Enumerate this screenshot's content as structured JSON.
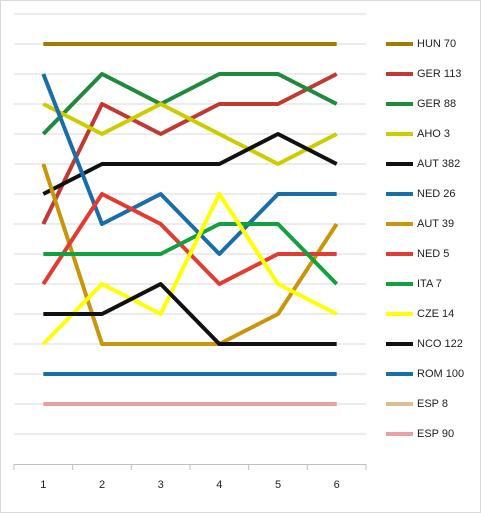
{
  "chart_data": {
    "type": "line",
    "categories": [
      "1",
      "2",
      "3",
      "4",
      "5",
      "6"
    ],
    "ylim": [
      0,
      15
    ],
    "yticks": [
      0,
      1,
      2,
      3,
      4,
      5,
      6,
      7,
      8,
      9,
      10,
      11,
      12,
      13,
      14
    ],
    "y_inverted": true,
    "grid": true,
    "legend": "right",
    "series": [
      {
        "name": "HUN 70",
        "color": "#a07c00",
        "values": [
          1,
          1,
          1,
          1,
          1,
          1
        ]
      },
      {
        "name": "GER 113",
        "color": "#be3a33",
        "values": [
          7,
          3,
          4,
          3,
          3,
          2
        ]
      },
      {
        "name": "GER 88",
        "color": "#1f8a3b",
        "values": [
          4,
          2,
          3,
          2,
          2,
          3
        ]
      },
      {
        "name": "AHO 3",
        "color": "#cccc00",
        "values": [
          3,
          4,
          3,
          4,
          5,
          4
        ]
      },
      {
        "name": "AUT 382",
        "color": "#111111",
        "values": [
          6,
          5,
          5,
          5,
          4,
          5
        ]
      },
      {
        "name": "NED 26",
        "color": "#1a6ea8",
        "values": [
          2,
          7,
          6,
          8,
          6,
          6
        ]
      },
      {
        "name": "AUT 39",
        "color": "#c8960c",
        "values": [
          5,
          11,
          11,
          11,
          10,
          7
        ]
      },
      {
        "name": "NED 5",
        "color": "#e03c31",
        "values": [
          9,
          6,
          7,
          9,
          8,
          8
        ]
      },
      {
        "name": "ITA 7",
        "color": "#14a040",
        "values": [
          8,
          8,
          8,
          7,
          7,
          9
        ]
      },
      {
        "name": "CZE 14",
        "color": "#ffff00",
        "values": [
          11,
          9,
          10,
          6,
          9,
          10
        ]
      },
      {
        "name": "NCO 122",
        "color": "#111111",
        "values": [
          10,
          10,
          9,
          11,
          11,
          11
        ]
      },
      {
        "name": "ROM 100",
        "color": "#1a6ea8",
        "values": [
          12,
          12,
          12,
          12,
          12,
          12
        ]
      },
      {
        "name": "ESP 8",
        "color": "#d9bf94",
        "values": [
          13,
          13,
          13,
          13,
          13,
          13
        ]
      },
      {
        "name": "ESP 90",
        "color": "#e8a0a0",
        "values": [
          13,
          13,
          13,
          13,
          13,
          13
        ]
      }
    ]
  }
}
